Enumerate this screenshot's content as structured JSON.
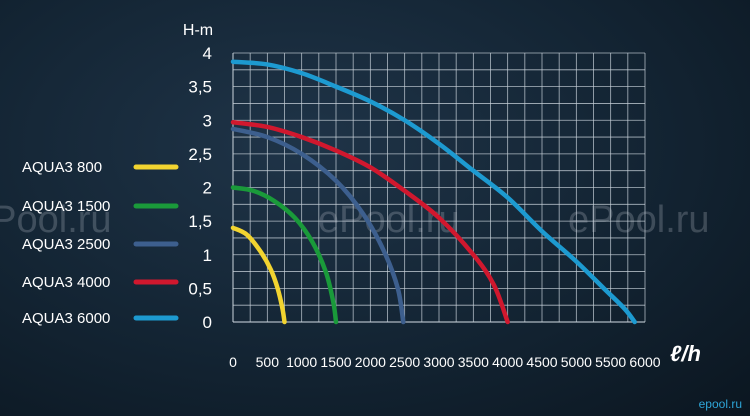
{
  "chart_data": {
    "type": "line",
    "title": "",
    "xlabel": "ℓ/h",
    "ylabel": "H-m",
    "xlim": [
      0,
      6000
    ],
    "ylim": [
      0,
      4
    ],
    "grid": true,
    "legend_position": "left",
    "x_ticks": [
      "0",
      "500",
      "1000",
      "1500",
      "2000",
      "2500",
      "3000",
      "3500",
      "4000",
      "4500",
      "5000",
      "5500",
      "6000"
    ],
    "y_ticks": [
      "0",
      "0,5",
      "1",
      "1,5",
      "2",
      "2,5",
      "3",
      "3,5",
      "4"
    ],
    "series": [
      {
        "name": "AQUA3 800",
        "color": "#f2d430",
        "points": [
          [
            0,
            1.4
          ],
          [
            200,
            1.3
          ],
          [
            400,
            1.05
          ],
          [
            550,
            0.78
          ],
          [
            650,
            0.5
          ],
          [
            720,
            0.2
          ],
          [
            750,
            0
          ]
        ]
      },
      {
        "name": "AQUA3 1500",
        "color": "#1a9a3a",
        "points": [
          [
            0,
            2.0
          ],
          [
            300,
            1.95
          ],
          [
            600,
            1.8
          ],
          [
            900,
            1.55
          ],
          [
            1150,
            1.2
          ],
          [
            1350,
            0.75
          ],
          [
            1460,
            0.3
          ],
          [
            1500,
            0
          ]
        ]
      },
      {
        "name": "AQUA3 2500",
        "color": "#3d5f8e",
        "points": [
          [
            0,
            2.87
          ],
          [
            500,
            2.75
          ],
          [
            1000,
            2.5
          ],
          [
            1500,
            2.1
          ],
          [
            1900,
            1.6
          ],
          [
            2200,
            1.05
          ],
          [
            2400,
            0.5
          ],
          [
            2480,
            0
          ]
        ]
      },
      {
        "name": "AQUA3 4000",
        "color": "#d0182e",
        "points": [
          [
            0,
            2.97
          ],
          [
            500,
            2.9
          ],
          [
            1000,
            2.75
          ],
          [
            1500,
            2.55
          ],
          [
            2000,
            2.3
          ],
          [
            2500,
            1.95
          ],
          [
            3000,
            1.55
          ],
          [
            3500,
            1.0
          ],
          [
            3800,
            0.55
          ],
          [
            4000,
            0
          ]
        ]
      },
      {
        "name": "AQUA3 6000",
        "color": "#1d9ad0",
        "points": [
          [
            0,
            3.87
          ],
          [
            500,
            3.83
          ],
          [
            1000,
            3.7
          ],
          [
            1500,
            3.5
          ],
          [
            2000,
            3.28
          ],
          [
            2500,
            3.0
          ],
          [
            3000,
            2.65
          ],
          [
            3500,
            2.25
          ],
          [
            4000,
            1.85
          ],
          [
            4500,
            1.35
          ],
          [
            5000,
            0.9
          ],
          [
            5400,
            0.5
          ],
          [
            5700,
            0.2
          ],
          [
            5850,
            0
          ]
        ]
      }
    ]
  },
  "watermark_text": "ePool.ru",
  "corner_mark": "epool.ru"
}
